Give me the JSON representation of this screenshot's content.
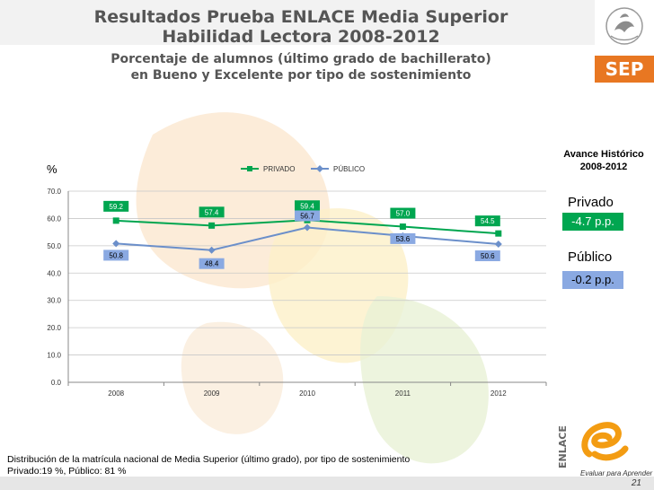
{
  "title": {
    "line1": "Resultados Prueba ENLACE Media Superior",
    "line2": "Habilidad Lectora 2008-2012",
    "sub1": "Porcentaje de alumnos (último grado de bachillerato)",
    "sub2": "en Bueno y Excelente por tipo de sostenimiento"
  },
  "logo": {
    "text": "SEP"
  },
  "side_panel": {
    "heading1": "Avance Histórico",
    "heading2": "2008-2012",
    "privado_label": "Privado",
    "privado_value": "-4.7 p.p.",
    "publico_label": "Público",
    "publico_value": "-0.2 p.p."
  },
  "footnote": {
    "line1": "Distribución de la matrícula nacional de Media Superior (último grado),  por tipo de sostenimiento",
    "line2": "Privado:19 %,  Público: 81 %"
  },
  "enlace": {
    "brand": "ENLACE",
    "tagline": "Evaluar para Aprender"
  },
  "page_number": "21",
  "colors": {
    "privado": "#00a650",
    "publico": "#6b8fca",
    "priv_label_bg": "#00a650",
    "pub_label_bg": "#8aa9e2"
  },
  "chart_data": {
    "type": "line",
    "ylabel": "%",
    "categories": [
      "2008",
      "2009",
      "2010",
      "2011",
      "2012"
    ],
    "y_ticks": [
      "0.0",
      "10.0",
      "20.0",
      "30.0",
      "40.0",
      "50.0",
      "60.0",
      "70.0"
    ],
    "ylim": [
      0,
      70
    ],
    "grid": true,
    "legend_position": "top",
    "series": [
      {
        "name": "PRIVADO",
        "values": [
          59.2,
          57.4,
          59.4,
          57.0,
          54.5
        ],
        "labels": [
          "59.2",
          "57.4",
          "59.4",
          "57.0",
          "54.5"
        ]
      },
      {
        "name": "PÚBLICO",
        "values": [
          50.8,
          48.4,
          56.7,
          53.6,
          50.6
        ],
        "labels": [
          "50.8",
          "48.4",
          "56.7",
          "53.6",
          "50.6"
        ]
      }
    ]
  }
}
